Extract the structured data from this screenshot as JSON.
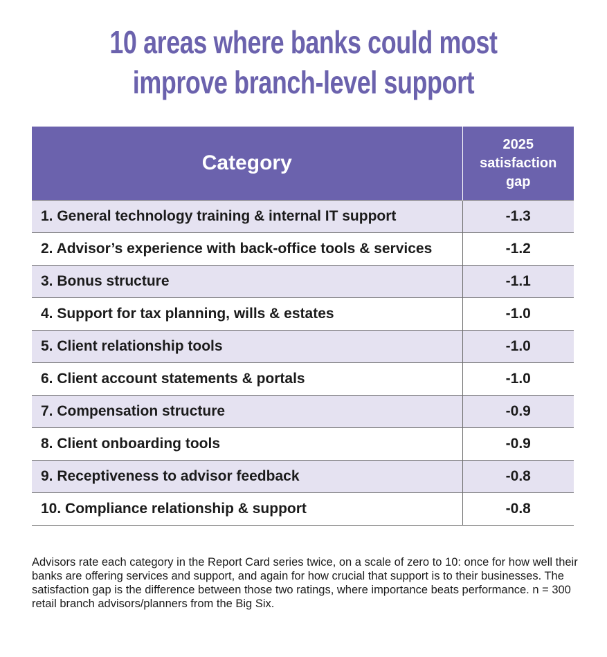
{
  "title": {
    "line1": "10 areas where banks could most",
    "line2": "improve branch-level support"
  },
  "colors": {
    "accent": "#6b62ad",
    "row_shade": "#e5e2f1"
  },
  "chart_data": {
    "type": "table",
    "columns": [
      "Category",
      "2025 satisfaction gap"
    ],
    "header": {
      "category": "Category",
      "gap_line1": "2025",
      "gap_line2": "satisfaction",
      "gap_line3": "gap"
    },
    "rows": [
      {
        "category": "1. General technology training & internal IT support",
        "gap": "-1.3"
      },
      {
        "category": "2. Advisor’s experience with back-office tools & services",
        "gap": "-1.2"
      },
      {
        "category": "3. Bonus structure",
        "gap": "-1.1"
      },
      {
        "category": "4. Support for tax planning, wills & estates",
        "gap": "-1.0"
      },
      {
        "category": "5. Client relationship tools",
        "gap": "-1.0"
      },
      {
        "category": "6. Client account statements & portals",
        "gap": "-1.0"
      },
      {
        "category": "7. Compensation structure",
        "gap": "-0.9"
      },
      {
        "category": "8. Client onboarding tools",
        "gap": "-0.9"
      },
      {
        "category": "9. Receptiveness to advisor feedback",
        "gap": "-0.8"
      },
      {
        "category": "10. Compliance relationship & support",
        "gap": "-0.8"
      }
    ]
  },
  "footnote": "Advisors rate each category in the Report Card series twice, on a scale of zero to 10: once for how well their banks are offering services and support, and again for how crucial that support is to their businesses. The satisfaction gap is the difference between those two ratings, where importance beats performance. n = 300 retail branch advisors/planners from the Big Six."
}
